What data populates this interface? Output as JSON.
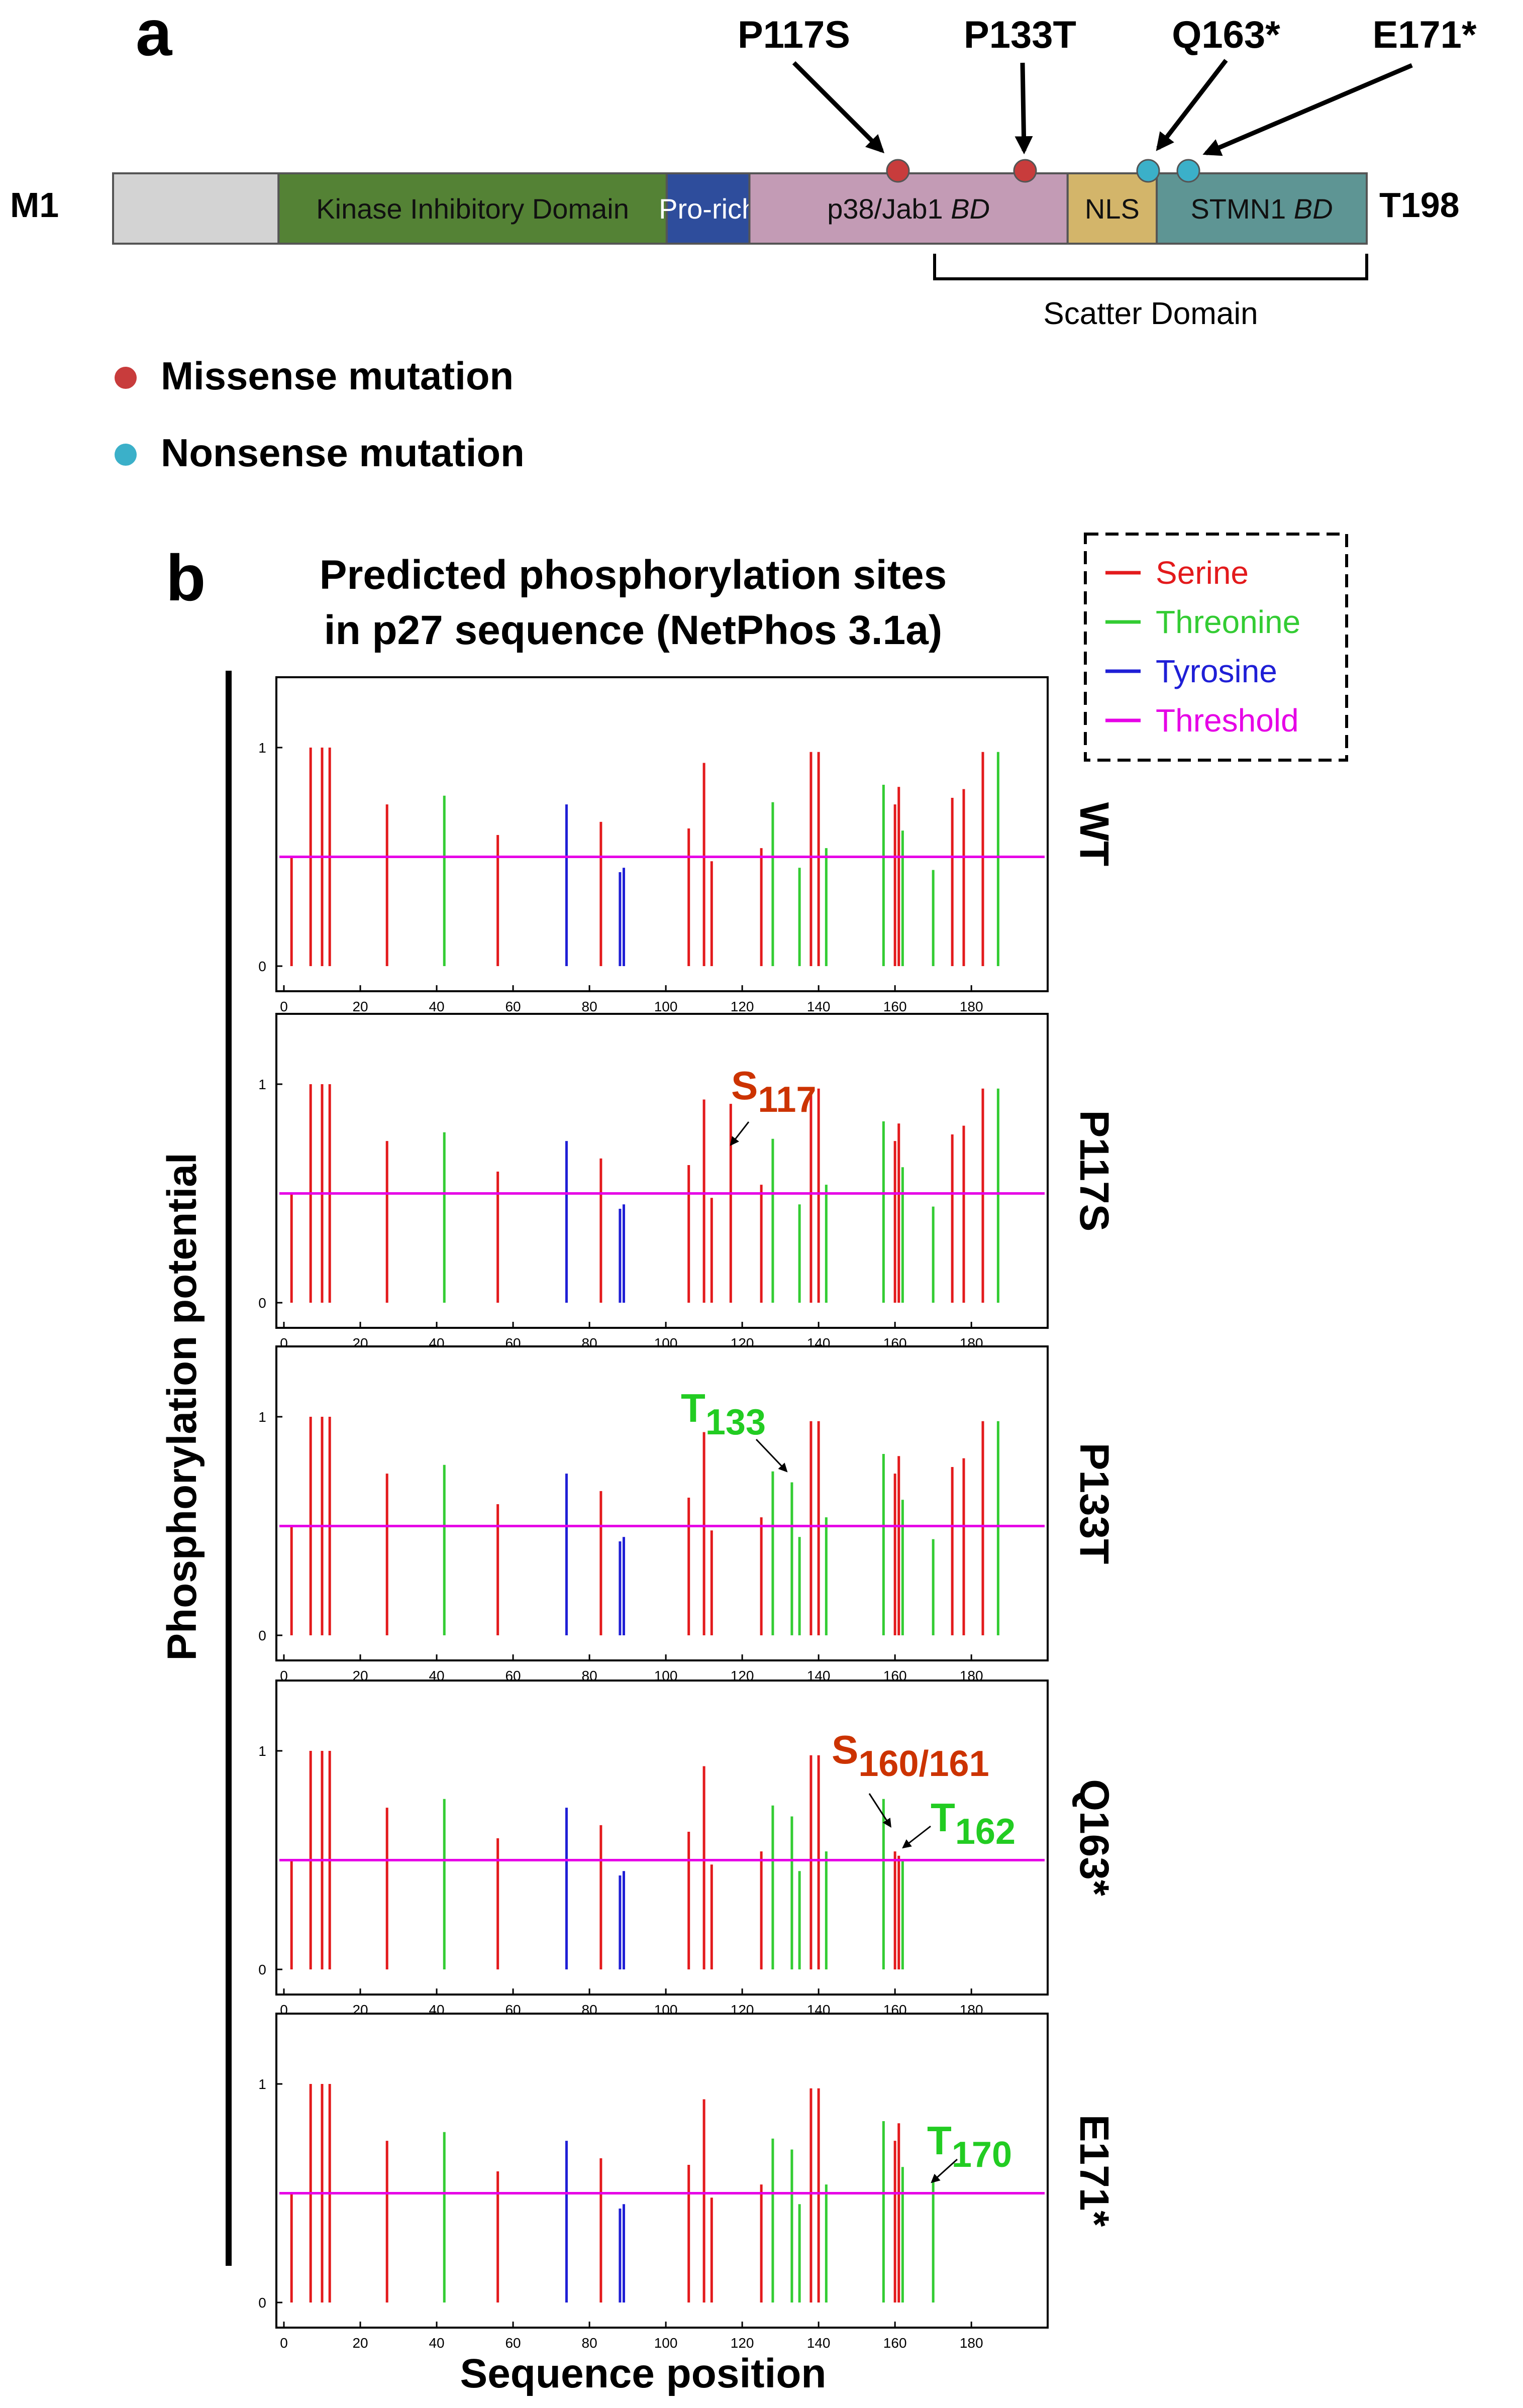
{
  "panel_a": {
    "label": "a",
    "start_label": "M1",
    "end_label": "T198",
    "domains": [
      {
        "name": "",
        "start": 1,
        "end": 27,
        "color": "#d3d3d3"
      },
      {
        "name": "Kinase Inhibitory Domain",
        "start": 27,
        "end": 88,
        "color": "#548235"
      },
      {
        "name": "Pro-rich",
        "start": 88,
        "end": 101,
        "color": "#2e4d9c"
      },
      {
        "name": "p38/Jab1 BD",
        "start": 101,
        "end": 151,
        "color": "#c39bb5"
      },
      {
        "name": "NLS",
        "start": 151,
        "end": 165,
        "color": "#d3b56a"
      },
      {
        "name": "STMN1 BD",
        "start": 165,
        "end": 198,
        "color": "#5e9594"
      }
    ],
    "scatter_domain_label": "Scatter Domain",
    "mutations": [
      {
        "label": "P117S",
        "type": "missense"
      },
      {
        "label": "P133T",
        "type": "missense"
      },
      {
        "label": "Q163*",
        "type": "nonsense"
      },
      {
        "label": "E171*",
        "type": "nonsense"
      }
    ],
    "legend": {
      "missense": "Missense mutation",
      "nonsense": "Nonsense mutation"
    }
  },
  "panel_b": {
    "label": "b",
    "title_line1": "Predicted phosphorylation sites",
    "title_line2": "in p27 sequence (NetPhos 3.1a)",
    "ylabel": "Phosphorylation potential",
    "xlabel": "Sequence position",
    "legend": [
      {
        "label": "Serine",
        "color": "#e31a1c"
      },
      {
        "label": "Threonine",
        "color": "#33cc33"
      },
      {
        "label": "Tyrosine",
        "color": "#1f1fd6"
      },
      {
        "label": "Threshold",
        "color": "#e600e6"
      }
    ]
  },
  "colors": {
    "serine": "#e31a1c",
    "threonine": "#33cc33",
    "tyrosine": "#1f1fd6",
    "threshold": "#e600e6",
    "missense": "#c83c3c",
    "nonsense": "#3bb0c9",
    "annotation_s": "#cc3300",
    "annotation_t": "#22cc22"
  },
  "chart_data": {
    "type": "bar",
    "xlim": [
      0,
      198
    ],
    "ylim": [
      0,
      1.0
    ],
    "xticks": [
      "0",
      "20",
      "40",
      "60",
      "80",
      "100",
      "120",
      "140",
      "160",
      "180"
    ],
    "yticks": [
      "0",
      "1"
    ],
    "threshold": 0.5,
    "base_sites": {
      "serine": [
        [
          2,
          0.5
        ],
        [
          7,
          1.0
        ],
        [
          10,
          1.0
        ],
        [
          12,
          1.0
        ],
        [
          27,
          0.74
        ],
        [
          56,
          0.6
        ],
        [
          83,
          0.66
        ],
        [
          106,
          0.63
        ],
        [
          110,
          0.93
        ],
        [
          112,
          0.48
        ],
        [
          125,
          0.54
        ],
        [
          138,
          0.98
        ],
        [
          140,
          0.98
        ],
        [
          161,
          0.82
        ],
        [
          175,
          0.77
        ],
        [
          178,
          0.81
        ],
        [
          183,
          0.98
        ]
      ],
      "threonine": [
        [
          42,
          0.78
        ],
        [
          128,
          0.75
        ],
        [
          135,
          0.45
        ],
        [
          142,
          0.54
        ],
        [
          157,
          0.83
        ],
        [
          162,
          0.62
        ],
        [
          170,
          0.44
        ],
        [
          187,
          0.98
        ]
      ],
      "tyrosine": [
        [
          74,
          0.74
        ],
        [
          88,
          0.43
        ],
        [
          89,
          0.45
        ]
      ]
    },
    "panels": [
      {
        "name": "WT",
        "annotation": null,
        "serine": [
          [
            2,
            0.5
          ],
          [
            7,
            1.0
          ],
          [
            10,
            1.0
          ],
          [
            12,
            1.0
          ],
          [
            27,
            0.74
          ],
          [
            56,
            0.6
          ],
          [
            83,
            0.66
          ],
          [
            106,
            0.63
          ],
          [
            110,
            0.93
          ],
          [
            112,
            0.48
          ],
          [
            125,
            0.54
          ],
          [
            138,
            0.98
          ],
          [
            140,
            0.98
          ],
          [
            160,
            0.74
          ],
          [
            161,
            0.82
          ],
          [
            175,
            0.77
          ],
          [
            178,
            0.81
          ],
          [
            183,
            0.98
          ]
        ],
        "threonine": [
          [
            42,
            0.78
          ],
          [
            128,
            0.75
          ],
          [
            135,
            0.45
          ],
          [
            142,
            0.54
          ],
          [
            157,
            0.83
          ],
          [
            162,
            0.62
          ],
          [
            170,
            0.44
          ],
          [
            187,
            0.98
          ]
        ],
        "tyrosine": [
          [
            74,
            0.74
          ],
          [
            88,
            0.43
          ],
          [
            89,
            0.45
          ]
        ]
      },
      {
        "name": "P117S",
        "annotation": [
          {
            "text": "S",
            "sub": "117",
            "kind": "s",
            "target": [
              117,
              0.9
            ]
          }
        ],
        "serine": [
          [
            2,
            0.5
          ],
          [
            7,
            1.0
          ],
          [
            10,
            1.0
          ],
          [
            12,
            1.0
          ],
          [
            27,
            0.74
          ],
          [
            56,
            0.6
          ],
          [
            83,
            0.66
          ],
          [
            106,
            0.63
          ],
          [
            110,
            0.93
          ],
          [
            112,
            0.48
          ],
          [
            117,
            0.91
          ],
          [
            125,
            0.54
          ],
          [
            138,
            0.98
          ],
          [
            140,
            0.98
          ],
          [
            160,
            0.74
          ],
          [
            161,
            0.82
          ],
          [
            175,
            0.77
          ],
          [
            178,
            0.81
          ],
          [
            183,
            0.98
          ]
        ],
        "threonine": [
          [
            42,
            0.78
          ],
          [
            128,
            0.75
          ],
          [
            135,
            0.45
          ],
          [
            142,
            0.54
          ],
          [
            157,
            0.83
          ],
          [
            162,
            0.62
          ],
          [
            170,
            0.44
          ],
          [
            187,
            0.98
          ]
        ],
        "tyrosine": [
          [
            74,
            0.74
          ],
          [
            88,
            0.43
          ],
          [
            89,
            0.45
          ]
        ]
      },
      {
        "name": "P133T",
        "annotation": [
          {
            "text": "T",
            "sub": "133",
            "kind": "t",
            "target": [
              133,
              0.7
            ]
          }
        ],
        "serine": [
          [
            2,
            0.5
          ],
          [
            7,
            1.0
          ],
          [
            10,
            1.0
          ],
          [
            12,
            1.0
          ],
          [
            27,
            0.74
          ],
          [
            56,
            0.6
          ],
          [
            83,
            0.66
          ],
          [
            106,
            0.63
          ],
          [
            110,
            0.93
          ],
          [
            112,
            0.48
          ],
          [
            125,
            0.54
          ],
          [
            138,
            0.98
          ],
          [
            140,
            0.98
          ],
          [
            160,
            0.74
          ],
          [
            161,
            0.82
          ],
          [
            175,
            0.77
          ],
          [
            178,
            0.81
          ],
          [
            183,
            0.98
          ]
        ],
        "threonine": [
          [
            42,
            0.78
          ],
          [
            128,
            0.75
          ],
          [
            133,
            0.7
          ],
          [
            135,
            0.45
          ],
          [
            142,
            0.54
          ],
          [
            157,
            0.83
          ],
          [
            162,
            0.62
          ],
          [
            170,
            0.44
          ],
          [
            187,
            0.98
          ]
        ],
        "tyrosine": [
          [
            74,
            0.74
          ],
          [
            88,
            0.43
          ],
          [
            89,
            0.45
          ]
        ]
      },
      {
        "name": "Q163*",
        "annotation": [
          {
            "text": "S",
            "sub": "160/161",
            "kind": "s",
            "target": [
              159,
              0.58
            ]
          },
          {
            "text": "T",
            "sub": "162",
            "kind": "t",
            "target": [
              162,
              0.5
            ]
          }
        ],
        "serine": [
          [
            2,
            0.5
          ],
          [
            7,
            1.0
          ],
          [
            10,
            1.0
          ],
          [
            12,
            1.0
          ],
          [
            27,
            0.74
          ],
          [
            56,
            0.6
          ],
          [
            83,
            0.66
          ],
          [
            106,
            0.63
          ],
          [
            110,
            0.93
          ],
          [
            112,
            0.48
          ],
          [
            125,
            0.54
          ],
          [
            138,
            0.98
          ],
          [
            140,
            0.98
          ],
          [
            160,
            0.54
          ],
          [
            161,
            0.52
          ]
        ],
        "threonine": [
          [
            42,
            0.78
          ],
          [
            128,
            0.75
          ],
          [
            133,
            0.7
          ],
          [
            135,
            0.45
          ],
          [
            142,
            0.54
          ],
          [
            157,
            0.78
          ],
          [
            162,
            0.5
          ]
        ],
        "tyrosine": [
          [
            74,
            0.74
          ],
          [
            88,
            0.43
          ],
          [
            89,
            0.45
          ]
        ]
      },
      {
        "name": "E171*",
        "annotation": [
          {
            "text": "T",
            "sub": "170",
            "kind": "t",
            "target": [
              170,
              0.55
            ]
          }
        ],
        "serine": [
          [
            2,
            0.5
          ],
          [
            7,
            1.0
          ],
          [
            10,
            1.0
          ],
          [
            12,
            1.0
          ],
          [
            27,
            0.74
          ],
          [
            56,
            0.6
          ],
          [
            83,
            0.66
          ],
          [
            106,
            0.63
          ],
          [
            110,
            0.93
          ],
          [
            112,
            0.48
          ],
          [
            125,
            0.54
          ],
          [
            138,
            0.98
          ],
          [
            140,
            0.98
          ],
          [
            160,
            0.74
          ],
          [
            161,
            0.82
          ]
        ],
        "threonine": [
          [
            42,
            0.78
          ],
          [
            128,
            0.75
          ],
          [
            133,
            0.7
          ],
          [
            135,
            0.45
          ],
          [
            142,
            0.54
          ],
          [
            157,
            0.83
          ],
          [
            162,
            0.62
          ],
          [
            170,
            0.56
          ]
        ],
        "tyrosine": [
          [
            74,
            0.74
          ],
          [
            88,
            0.43
          ],
          [
            89,
            0.45
          ]
        ]
      }
    ]
  }
}
